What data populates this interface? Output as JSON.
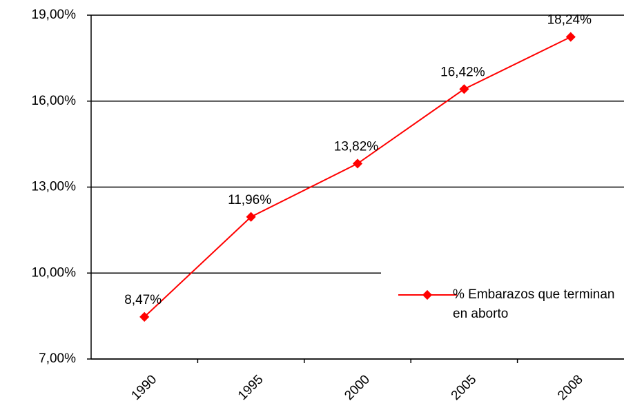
{
  "chart_data": {
    "type": "line",
    "categories": [
      "1990",
      "1995",
      "2000",
      "2005",
      "2008"
    ],
    "series": [
      {
        "name": "% Embarazos que terminan en aborto",
        "color": "#ff0000",
        "values": [
          8.47,
          11.96,
          13.82,
          16.42,
          18.24
        ],
        "value_labels": [
          "8,47%",
          "11,96%",
          "13,82%",
          "16,42%",
          "18,24%"
        ]
      }
    ],
    "ylim": [
      7,
      19
    ],
    "yticks": [
      {
        "value": 7,
        "label": "7,00%"
      },
      {
        "value": 10,
        "label": "10,00%"
      },
      {
        "value": 13,
        "label": "13,00%"
      },
      {
        "value": 16,
        "label": "16,00%"
      },
      {
        "value": 19,
        "label": "19,00%"
      }
    ],
    "grid": true,
    "legend": "lower right"
  }
}
